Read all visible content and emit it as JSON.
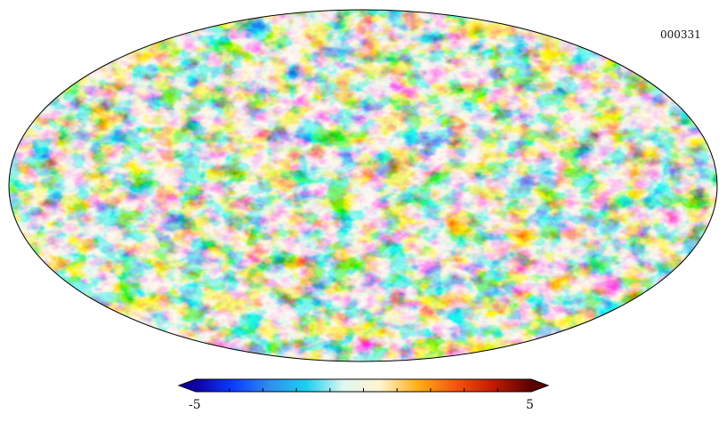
{
  "map": {
    "id_label": "000331",
    "projection": "mollweide",
    "description_colors": {
      "outline": "#000000",
      "background": "#ffffff"
    }
  },
  "colorbar": {
    "min_label": "-5",
    "max_label": "5",
    "min_value": -5,
    "max_value": 5,
    "tick_values": [
      -4,
      -3,
      -2,
      -1,
      0,
      1,
      2,
      3,
      4
    ],
    "extend": "both",
    "stops": [
      "#0f00a4",
      "#0a3cff",
      "#2f8df0",
      "#1ccff0",
      "#dff7f2",
      "#fff4cf",
      "#ffb11a",
      "#f3590c",
      "#c51d00",
      "#5c0000"
    ]
  }
}
